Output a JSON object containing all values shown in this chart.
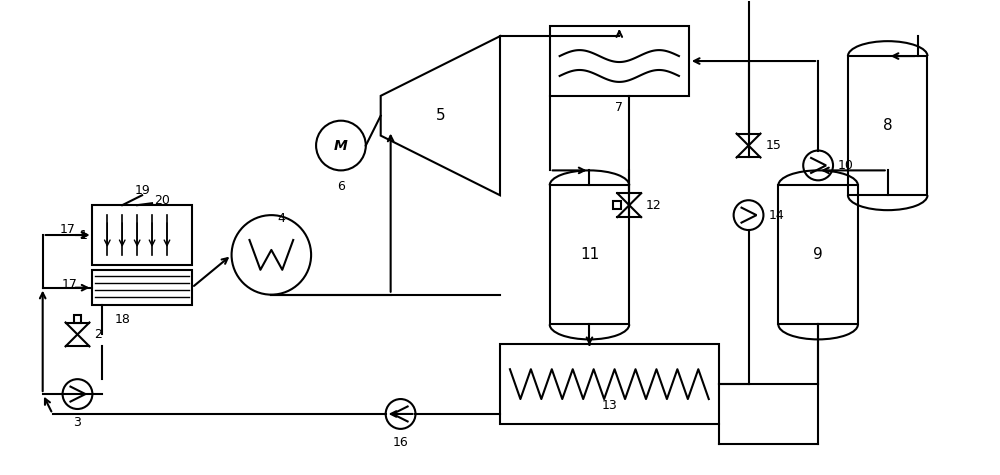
{
  "bg_color": "#ffffff",
  "line_color": "#000000",
  "fig_width": 10.0,
  "fig_height": 4.75,
  "dpi": 100
}
